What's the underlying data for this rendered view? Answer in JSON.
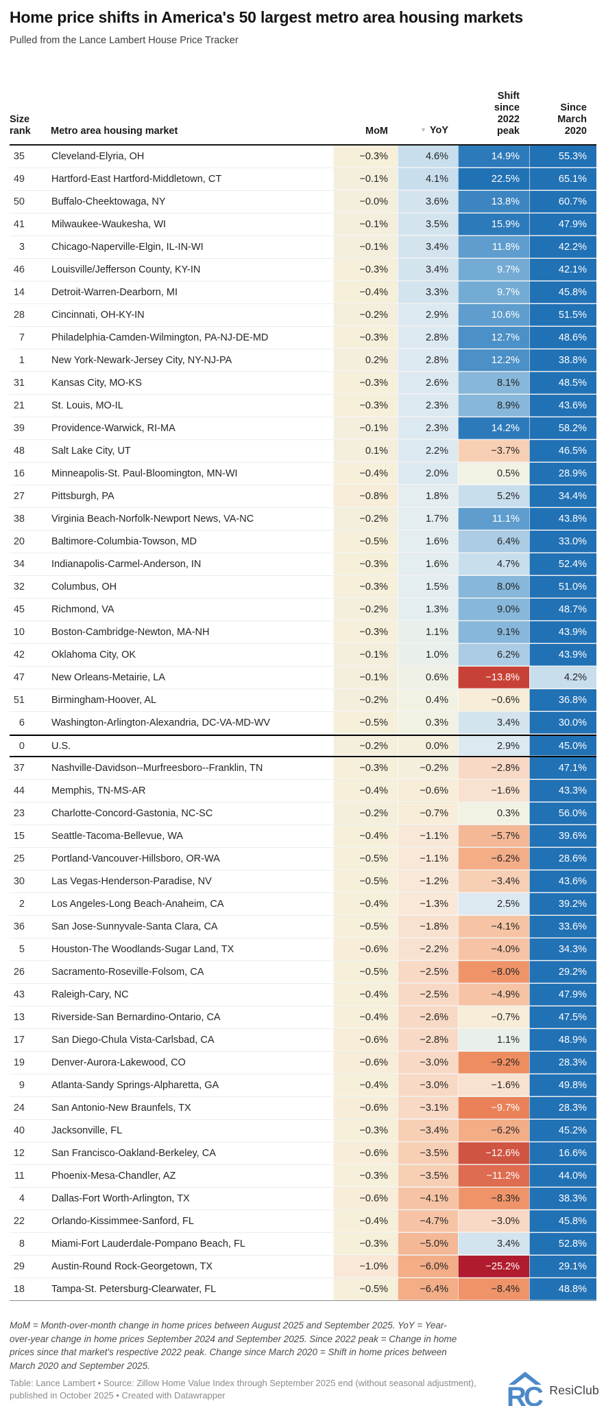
{
  "chart_data": {
    "type": "table",
    "title": "Home price shifts in America's 50 largest metro area housing markets",
    "subtitle": "Pulled from the Lance Lambert House Price Tracker",
    "columns": [
      "Size rank",
      "Metro area housing market",
      "MoM",
      "YoY",
      "Shift since 2022 peak",
      "Since March 2020"
    ],
    "sorted_by": "YoY descending",
    "rows": [
      [
        "35",
        "Cleveland-Elyria, OH",
        "−0.3%",
        "4.6%",
        "14.9%",
        "55.3%"
      ],
      [
        "49",
        "Hartford-East Hartford-Middletown, CT",
        "−0.1%",
        "4.1%",
        "22.5%",
        "65.1%"
      ],
      [
        "50",
        "Buffalo-Cheektowaga, NY",
        "−0.0%",
        "3.6%",
        "13.8%",
        "60.7%"
      ],
      [
        "41",
        "Milwaukee-Waukesha, WI",
        "−0.1%",
        "3.5%",
        "15.9%",
        "47.9%"
      ],
      [
        "3",
        "Chicago-Naperville-Elgin, IL-IN-WI",
        "−0.1%",
        "3.4%",
        "11.8%",
        "42.2%"
      ],
      [
        "46",
        "Louisville/Jefferson County, KY-IN",
        "−0.3%",
        "3.4%",
        "9.7%",
        "42.1%"
      ],
      [
        "14",
        "Detroit-Warren-Dearborn, MI",
        "−0.4%",
        "3.3%",
        "9.7%",
        "45.8%"
      ],
      [
        "28",
        "Cincinnati, OH-KY-IN",
        "−0.2%",
        "2.9%",
        "10.6%",
        "51.5%"
      ],
      [
        "7",
        "Philadelphia-Camden-Wilmington, PA-NJ-DE-MD",
        "−0.3%",
        "2.8%",
        "12.7%",
        "48.6%"
      ],
      [
        "1",
        "New York-Newark-Jersey City, NY-NJ-PA",
        "0.2%",
        "2.8%",
        "12.2%",
        "38.8%"
      ],
      [
        "31",
        "Kansas City, MO-KS",
        "−0.3%",
        "2.6%",
        "8.1%",
        "48.5%"
      ],
      [
        "21",
        "St. Louis, MO-IL",
        "−0.3%",
        "2.3%",
        "8.9%",
        "43.6%"
      ],
      [
        "39",
        "Providence-Warwick, RI-MA",
        "−0.1%",
        "2.3%",
        "14.2%",
        "58.2%"
      ],
      [
        "48",
        "Salt Lake City, UT",
        "0.1%",
        "2.2%",
        "−3.7%",
        "46.5%"
      ],
      [
        "16",
        "Minneapolis-St. Paul-Bloomington, MN-WI",
        "−0.4%",
        "2.0%",
        "0.5%",
        "28.9%"
      ],
      [
        "27",
        "Pittsburgh, PA",
        "−0.8%",
        "1.8%",
        "5.2%",
        "34.4%"
      ],
      [
        "38",
        "Virginia Beach-Norfolk-Newport News, VA-NC",
        "−0.2%",
        "1.7%",
        "11.1%",
        "43.8%"
      ],
      [
        "20",
        "Baltimore-Columbia-Towson, MD",
        "−0.5%",
        "1.6%",
        "6.4%",
        "33.0%"
      ],
      [
        "34",
        "Indianapolis-Carmel-Anderson, IN",
        "−0.3%",
        "1.6%",
        "4.7%",
        "52.4%"
      ],
      [
        "32",
        "Columbus, OH",
        "−0.3%",
        "1.5%",
        "8.0%",
        "51.0%"
      ],
      [
        "45",
        "Richmond, VA",
        "−0.2%",
        "1.3%",
        "9.0%",
        "48.7%"
      ],
      [
        "10",
        "Boston-Cambridge-Newton, MA-NH",
        "−0.3%",
        "1.1%",
        "9.1%",
        "43.9%"
      ],
      [
        "42",
        "Oklahoma City, OK",
        "−0.1%",
        "1.0%",
        "6.2%",
        "43.9%"
      ],
      [
        "47",
        "New Orleans-Metairie, LA",
        "−0.1%",
        "0.6%",
        "−13.8%",
        "4.2%"
      ],
      [
        "51",
        "Birmingham-Hoover, AL",
        "−0.2%",
        "0.4%",
        "−0.6%",
        "36.8%"
      ],
      [
        "6",
        "Washington-Arlington-Alexandria, DC-VA-MD-WV",
        "−0.5%",
        "0.3%",
        "3.4%",
        "30.0%"
      ],
      [
        "0",
        "U.S.",
        "−0.2%",
        "0.0%",
        "2.9%",
        "45.0%"
      ],
      [
        "37",
        "Nashville-Davidson--Murfreesboro--Franklin, TN",
        "−0.3%",
        "−0.2%",
        "−2.8%",
        "47.1%"
      ],
      [
        "44",
        "Memphis, TN-MS-AR",
        "−0.4%",
        "−0.6%",
        "−1.6%",
        "43.3%"
      ],
      [
        "23",
        "Charlotte-Concord-Gastonia, NC-SC",
        "−0.2%",
        "−0.7%",
        "0.3%",
        "56.0%"
      ],
      [
        "15",
        "Seattle-Tacoma-Bellevue, WA",
        "−0.4%",
        "−1.1%",
        "−5.7%",
        "39.6%"
      ],
      [
        "25",
        "Portland-Vancouver-Hillsboro, OR-WA",
        "−0.5%",
        "−1.1%",
        "−6.2%",
        "28.6%"
      ],
      [
        "30",
        "Las Vegas-Henderson-Paradise, NV",
        "−0.5%",
        "−1.2%",
        "−3.4%",
        "43.6%"
      ],
      [
        "2",
        "Los Angeles-Long Beach-Anaheim, CA",
        "−0.4%",
        "−1.3%",
        "2.5%",
        "39.2%"
      ],
      [
        "36",
        "San Jose-Sunnyvale-Santa Clara, CA",
        "−0.5%",
        "−1.8%",
        "−4.1%",
        "33.6%"
      ],
      [
        "5",
        "Houston-The Woodlands-Sugar Land, TX",
        "−0.6%",
        "−2.2%",
        "−4.0%",
        "34.3%"
      ],
      [
        "26",
        "Sacramento-Roseville-Folsom, CA",
        "−0.5%",
        "−2.5%",
        "−8.0%",
        "29.2%"
      ],
      [
        "43",
        "Raleigh-Cary, NC",
        "−0.4%",
        "−2.5%",
        "−4.9%",
        "47.9%"
      ],
      [
        "13",
        "Riverside-San Bernardino-Ontario, CA",
        "−0.4%",
        "−2.6%",
        "−0.7%",
        "47.5%"
      ],
      [
        "17",
        "San Diego-Chula Vista-Carlsbad, CA",
        "−0.6%",
        "−2.8%",
        "1.1%",
        "48.9%"
      ],
      [
        "19",
        "Denver-Aurora-Lakewood, CO",
        "−0.6%",
        "−3.0%",
        "−9.2%",
        "28.3%"
      ],
      [
        "9",
        "Atlanta-Sandy Springs-Alpharetta, GA",
        "−0.4%",
        "−3.0%",
        "−1.6%",
        "49.8%"
      ],
      [
        "24",
        "San Antonio-New Braunfels, TX",
        "−0.6%",
        "−3.1%",
        "−9.7%",
        "28.3%"
      ],
      [
        "40",
        "Jacksonville, FL",
        "−0.3%",
        "−3.4%",
        "−6.2%",
        "45.2%"
      ],
      [
        "12",
        "San Francisco-Oakland-Berkeley, CA",
        "−0.6%",
        "−3.5%",
        "−12.6%",
        "16.6%"
      ],
      [
        "11",
        "Phoenix-Mesa-Chandler, AZ",
        "−0.3%",
        "−3.5%",
        "−11.2%",
        "44.0%"
      ],
      [
        "4",
        "Dallas-Fort Worth-Arlington, TX",
        "−0.6%",
        "−4.1%",
        "−8.3%",
        "38.3%"
      ],
      [
        "22",
        "Orlando-Kissimmee-Sanford, FL",
        "−0.4%",
        "−4.7%",
        "−3.0%",
        "45.8%"
      ],
      [
        "8",
        "Miami-Fort Lauderdale-Pompano Beach, FL",
        "−0.3%",
        "−5.0%",
        "3.4%",
        "52.8%"
      ],
      [
        "29",
        "Austin-Round Rock-Georgetown, TX",
        "−1.0%",
        "−6.0%",
        "−25.2%",
        "29.1%"
      ],
      [
        "18",
        "Tampa-St. Petersburg-Clearwater, FL",
        "−0.5%",
        "−6.4%",
        "−8.4%",
        "48.8%"
      ]
    ]
  },
  "table_header": {
    "rank": "Size\nrank",
    "metro": "Metro area housing market",
    "mom": "MoM",
    "yoy": "YoY",
    "sort_icon": "▼",
    "shift": "Shift\nsince\n2022\npeak",
    "since": "Since\nMarch\n2020"
  },
  "us_row_label": "U.S.",
  "heatmap_scale": {
    "bands": [
      [
        -15,
        "#b01b2d"
      ],
      [
        -13.2,
        "#c84136"
      ],
      [
        -12,
        "#d05442"
      ],
      [
        -10.4,
        "#de6c50"
      ],
      [
        -9.45,
        "#ea8158"
      ],
      [
        -8.7,
        "#ee8d60"
      ],
      [
        -7,
        "#ef9469"
      ],
      [
        -5.9,
        "#f3ad87"
      ],
      [
        -4.95,
        "#f4b896"
      ],
      [
        -3.9,
        "#f6c4a5"
      ],
      [
        -3.25,
        "#f7cfb4"
      ],
      [
        -2.35,
        "#f8d9c5"
      ],
      [
        -1.45,
        "#f9e1cf"
      ],
      [
        -0.85,
        "#f9e8d7"
      ],
      [
        -0.55,
        "#f7edd8"
      ],
      [
        -0.25,
        "#f6efda"
      ],
      [
        0.25,
        "#f4efdd"
      ],
      [
        0.55,
        "#f2f2e4"
      ],
      [
        0.85,
        "#f0f1e6"
      ],
      [
        1.25,
        "#e9efeb"
      ],
      [
        1.95,
        "#e4edef"
      ],
      [
        3.1,
        "#dde9f1"
      ],
      [
        3.9,
        "#d3e4ef"
      ],
      [
        5.5,
        "#c8deed"
      ],
      [
        7,
        "#abcce4"
      ],
      [
        9.45,
        "#87b7da"
      ],
      [
        10.2,
        "#74abd4"
      ],
      [
        12,
        "#5e9dcd"
      ],
      [
        13.3,
        "#4b90c6"
      ],
      [
        14,
        "#3c85c0"
      ],
      [
        16,
        "#2d7abb"
      ]
    ],
    "max_color": "#2171b5",
    "text_dark": "#242424",
    "text_light": "#ffffff",
    "light_text_abs_threshold": 9.45
  },
  "footer": {
    "notes": "MoM = Month-over-month change in home prices between August 2025 and September 2025. YoY = Year-over-year change in home prices September 2024 and September 2025. Since 2022 peak = Change in home prices since that market's respective 2022 peak. Change since March 2020 = Shift in home prices between March 2020 and September 2025.",
    "source": "Table: Lance Lambert • Source: Zillow Home Value Index through September 2025 end (without seasonal adjustment), published in October 2025 • Created with Datawrapper",
    "logo_monogram": "RC",
    "logo_text": "ResiClub",
    "logo_color": "#4d89c8"
  }
}
